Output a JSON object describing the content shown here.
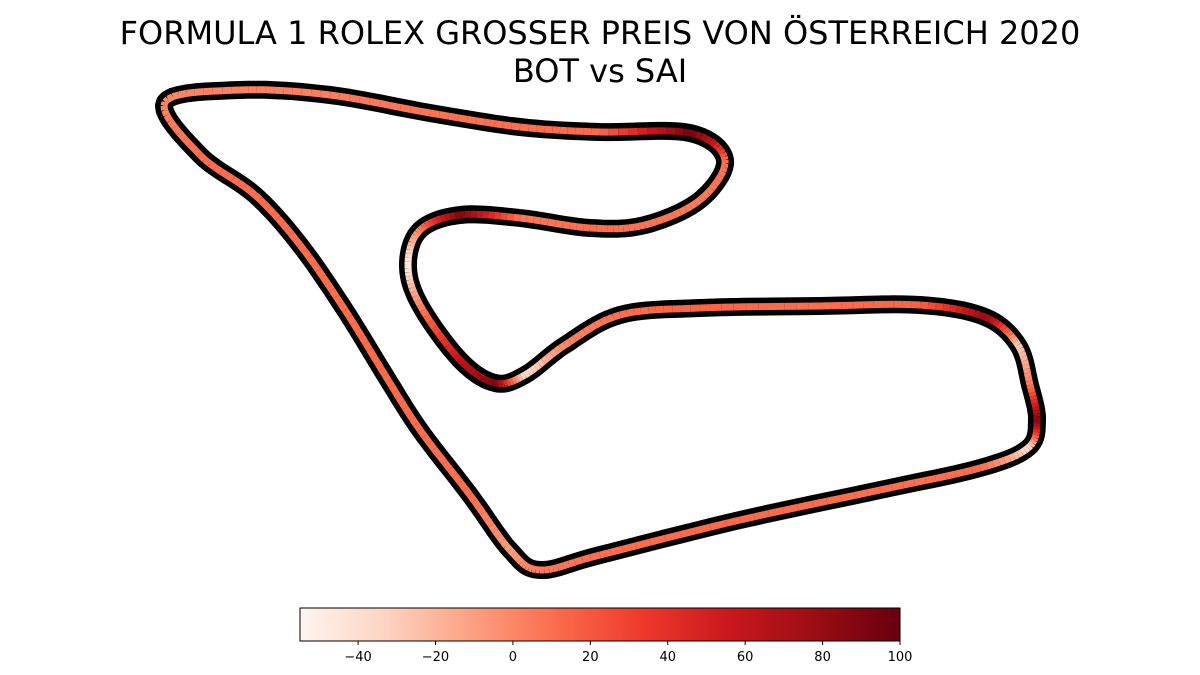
{
  "chart_data": {
    "type": "line",
    "title": "FORMULA 1 ROLEX GROSSER PREIS VON ÖSTERREICH 2020",
    "subtitle": "BOT vs SAI",
    "colormap": [
      "#fff5f0",
      "#fdd4c2",
      "#fca082",
      "#fb6b4b",
      "#ed392b",
      "#c9181d",
      "#9c0d14",
      "#67000d"
    ],
    "track_outline_color": "#000000",
    "colorbar": {
      "min": -55,
      "max": 100,
      "ticks": [
        -40,
        -20,
        0,
        20,
        40,
        60,
        80,
        100
      ],
      "tick_labels": [
        "−40",
        "−20",
        "0",
        "20",
        "40",
        "60",
        "80",
        "100"
      ]
    },
    "track": {
      "x": [
        165,
        240,
        330,
        430,
        520,
        600,
        690,
        725,
        700,
        645,
        590,
        520,
        460,
        420,
        408,
        420,
        460,
        495,
        525,
        565,
        620,
        700,
        820,
        920,
        985,
        1018,
        1030,
        1037,
        1028,
        980,
        880,
        740,
        600,
        540,
        510,
        470,
        420,
        385,
        345,
        300,
        255,
        200,
        165
      ],
      "y": [
        102,
        90,
        95,
        113,
        127,
        132,
        133,
        160,
        200,
        225,
        228,
        218,
        215,
        230,
        265,
        305,
        360,
        383,
        375,
        345,
        315,
        308,
        306,
        305,
        317,
        345,
        385,
        420,
        448,
        468,
        490,
        520,
        555,
        570,
        550,
        495,
        430,
        375,
        310,
        245,
        195,
        155,
        102
      ]
    },
    "delta": [
      0,
      2,
      4,
      8,
      10,
      12,
      95,
      10,
      5,
      8,
      10,
      6,
      90,
      2,
      -50,
      0,
      60,
      90,
      -40,
      0,
      10,
      15,
      10,
      15,
      80,
      -30,
      5,
      90,
      -40,
      10,
      10,
      12,
      10,
      5,
      -10,
      10,
      10,
      12,
      10,
      10,
      10,
      10,
      0
    ]
  }
}
